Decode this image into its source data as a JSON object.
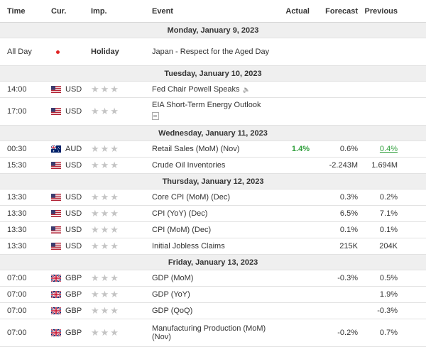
{
  "headers": {
    "time": "Time",
    "currency": "Cur.",
    "importance": "Imp.",
    "event": "Event",
    "actual": "Actual",
    "forecast": "Forecast",
    "previous": "Previous"
  },
  "stars": "★★★",
  "colors": {
    "positive": "#2e9e3a",
    "holiday_dot": "#e02424",
    "star_inactive": "#c4c4c4"
  },
  "days": [
    {
      "date": "Monday, January 9, 2023",
      "events": [
        {
          "time": "All Day",
          "currency": "",
          "flag": "jp",
          "importance": "Holiday",
          "event": "Japan - Respect for the Aged Day",
          "actual": "",
          "forecast": "",
          "previous": ""
        }
      ]
    },
    {
      "date": "Tuesday, January 10, 2023",
      "events": [
        {
          "time": "14:00",
          "currency": "USD",
          "flag": "us",
          "importance": "stars",
          "event": "Fed Chair Powell Speaks",
          "icon": "speaker-icon",
          "actual": "",
          "forecast": "",
          "previous": ""
        },
        {
          "time": "17:00",
          "currency": "USD",
          "flag": "us",
          "importance": "stars",
          "event": "EIA Short-Term Energy Outlook",
          "icon": "document-icon",
          "actual": "",
          "forecast": "",
          "previous": ""
        }
      ]
    },
    {
      "date": "Wednesday, January 11, 2023",
      "events": [
        {
          "time": "00:30",
          "currency": "AUD",
          "flag": "au",
          "importance": "stars",
          "event": "Retail Sales (MoM) (Nov)",
          "actual": "1.4%",
          "actual_style": "positive",
          "forecast": "0.6%",
          "previous": "0.4%",
          "previous_style": "revised-positive"
        },
        {
          "time": "15:30",
          "currency": "USD",
          "flag": "us",
          "importance": "stars",
          "event": "Crude Oil Inventories",
          "actual": "",
          "forecast": "-2.243M",
          "previous": "1.694M"
        }
      ]
    },
    {
      "date": "Thursday, January 12, 2023",
      "events": [
        {
          "time": "13:30",
          "currency": "USD",
          "flag": "us",
          "importance": "stars",
          "event": "Core CPI (MoM) (Dec)",
          "actual": "",
          "forecast": "0.3%",
          "previous": "0.2%"
        },
        {
          "time": "13:30",
          "currency": "USD",
          "flag": "us",
          "importance": "stars",
          "event": "CPI (YoY) (Dec)",
          "actual": "",
          "forecast": "6.5%",
          "previous": "7.1%"
        },
        {
          "time": "13:30",
          "currency": "USD",
          "flag": "us",
          "importance": "stars",
          "event": "CPI (MoM) (Dec)",
          "actual": "",
          "forecast": "0.1%",
          "previous": "0.1%"
        },
        {
          "time": "13:30",
          "currency": "USD",
          "flag": "us",
          "importance": "stars",
          "event": "Initial Jobless Claims",
          "actual": "",
          "forecast": "215K",
          "previous": "204K"
        }
      ]
    },
    {
      "date": "Friday, January 13, 2023",
      "events": [
        {
          "time": "07:00",
          "currency": "GBP",
          "flag": "gb",
          "importance": "stars",
          "event": "GDP (MoM)",
          "actual": "",
          "forecast": "-0.3%",
          "previous": "0.5%"
        },
        {
          "time": "07:00",
          "currency": "GBP",
          "flag": "gb",
          "importance": "stars",
          "event": "GDP (YoY)",
          "actual": "",
          "forecast": "",
          "previous": "1.9%"
        },
        {
          "time": "07:00",
          "currency": "GBP",
          "flag": "gb",
          "importance": "stars",
          "event": "GDP (QoQ)",
          "actual": "",
          "forecast": "",
          "previous": "-0.3%"
        },
        {
          "time": "07:00",
          "currency": "GBP",
          "flag": "gb",
          "importance": "stars",
          "event": "Manufacturing Production (MoM) (Nov)",
          "actual": "",
          "forecast": "-0.2%",
          "previous": "0.7%"
        }
      ]
    }
  ]
}
